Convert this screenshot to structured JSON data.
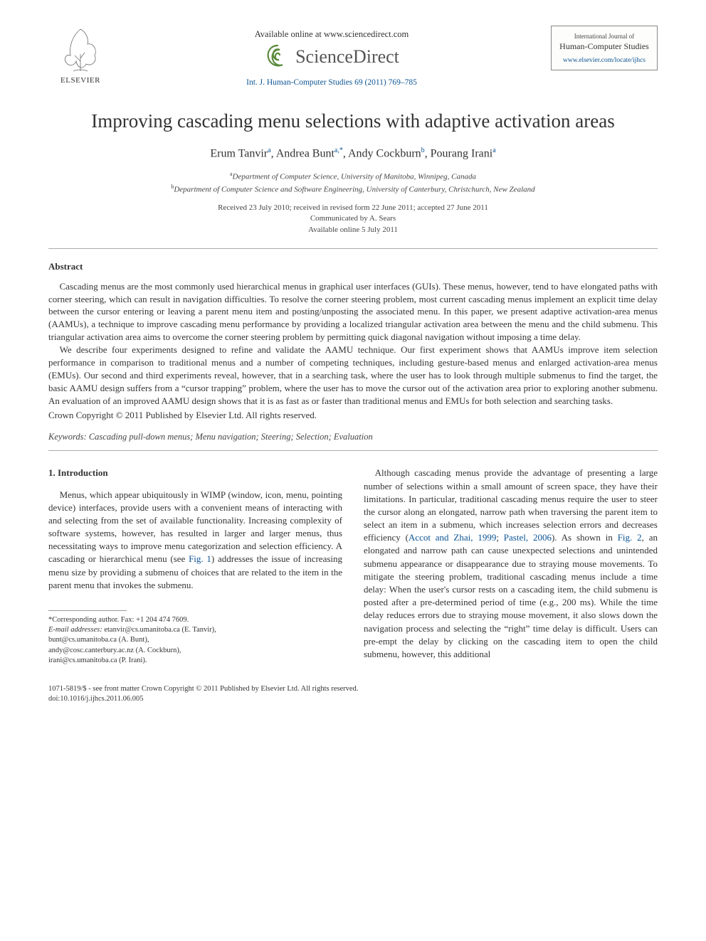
{
  "header": {
    "elsevier_label": "ELSEVIER",
    "available_line": "Available online at www.sciencedirect.com",
    "sd_brand": "ScienceDirect",
    "citation": "Int. J. Human-Computer Studies 69 (2011) 769–785",
    "journal_top": "International Journal of",
    "journal_main": "Human-Computer Studies",
    "journal_url": "www.elsevier.com/locate/ijhcs"
  },
  "title": "Improving cascading menu selections with adaptive activation areas",
  "authors_html": "Erum Tanvir<sup>a</sup>, Andrea Bunt<sup>a,*</sup>, Andy Cockburn<sup>b</sup>, Pourang Irani<sup>a</sup>",
  "affiliations": {
    "a": "Department of Computer Science, University of Manitoba, Winnipeg, Canada",
    "b": "Department of Computer Science and Software Engineering, University of Canterbury, Christchurch, New Zealand"
  },
  "dates": {
    "l1": "Received 23 July 2010; received in revised form 22 June 2011; accepted 27 June 2011",
    "l2": "Communicated by A. Sears",
    "l3": "Available online 5 July 2011"
  },
  "abstract": {
    "heading": "Abstract",
    "p1": "Cascading menus are the most commonly used hierarchical menus in graphical user interfaces (GUIs). These menus, however, tend to have elongated paths with corner steering, which can result in navigation difficulties. To resolve the corner steering problem, most current cascading menus implement an explicit time delay between the cursor entering or leaving a parent menu item and posting/unposting the associated menu. In this paper, we present adaptive activation-area menus (AAMUs), a technique to improve cascading menu performance by providing a localized triangular activation area between the menu and the child submenu. This triangular activation area aims to overcome the corner steering problem by permitting quick diagonal navigation without imposing a time delay.",
    "p2": "We describe four experiments designed to refine and validate the AAMU technique. Our first experiment shows that AAMUs improve item selection performance in comparison to traditional menus and a number of competing techniques, including gesture-based menus and enlarged activation-area menus (EMUs). Our second and third experiments reveal, however, that in a searching task, where the user has to look through multiple submenus to find the target, the basic AAMU design suffers from a “cursor trapping” problem, where the user has to move the cursor out of the activation area prior to exploring another submenu. An evaluation of an improved AAMU design shows that it is as fast as or faster than traditional menus and EMUs for both selection and searching tasks.",
    "copyright": "Crown Copyright © 2011 Published by Elsevier Ltd. All rights reserved."
  },
  "keywords": "Keywords: Cascading pull-down menus; Menu navigation; Steering; Selection; Evaluation",
  "intro": {
    "heading": "1. Introduction",
    "left_p": "Menus, which appear ubiquitously in WIMP (window, icon, menu, pointing device) interfaces, provide users with a convenient means of interacting with and selecting from the set of available functionality. Increasing complexity of software systems, however, has resulted in larger and larger menus, thus necessitating ways to improve menu categorization and selection efficiency. A cascading or hierarchical menu (see ",
    "fig1": "Fig. 1",
    "left_p_cont": ") addresses the issue of increasing menu size by providing a submenu of choices that are related to the item in the parent menu that invokes the submenu.",
    "right_p1_a": "Although cascading menus provide the advantage of presenting a large number of selections within a small amount of screen space, they have their limitations. In particular, traditional cascading menus require the user to steer the cursor along an elongated, narrow path when traversing the parent item to select an item in a submenu, which increases selection errors and decreases efficiency (",
    "ref1": "Accot and Zhai, 1999",
    "ref_sep": "; ",
    "ref2": "Pastel, 2006",
    "right_p1_b": "). As shown in ",
    "fig2": "Fig. 2",
    "right_p1_c": ", an elongated and narrow path can cause unexpected selections and unintended submenu appearance or disappearance due to straying mouse movements. To mitigate the steering problem, traditional cascading menus include a time delay: When the user's cursor rests on a cascading item, the child submenu is posted after a pre-determined period of time (e.g., 200 ms). While the time delay reduces errors due to straying mouse movement, it also slows down the navigation process and selecting the “right” time delay is difficult. Users can pre-empt the delay by clicking on the cascading item to open the child submenu, however, this additional"
  },
  "footnotes": {
    "corr": "*Corresponding author. Fax: +1 204 474 7609.",
    "email_label": "E-mail addresses:",
    "e1": "etanvir@cs.umanitoba.ca (E. Tanvir),",
    "e2": "bunt@cs.umanitoba.ca (A. Bunt),",
    "e3": "andy@cosc.canterbury.ac.nz (A. Cockburn),",
    "e4": "irani@cs.umanitoba.ca (P. Irani)."
  },
  "footer": {
    "l1": "1071-5819/$ - see front matter Crown Copyright © 2011 Published by Elsevier Ltd. All rights reserved.",
    "l2": "doi:10.1016/j.ijhcs.2011.06.005"
  },
  "colors": {
    "link": "#0b5394",
    "text": "#333333",
    "rule": "#aaaaaa"
  }
}
